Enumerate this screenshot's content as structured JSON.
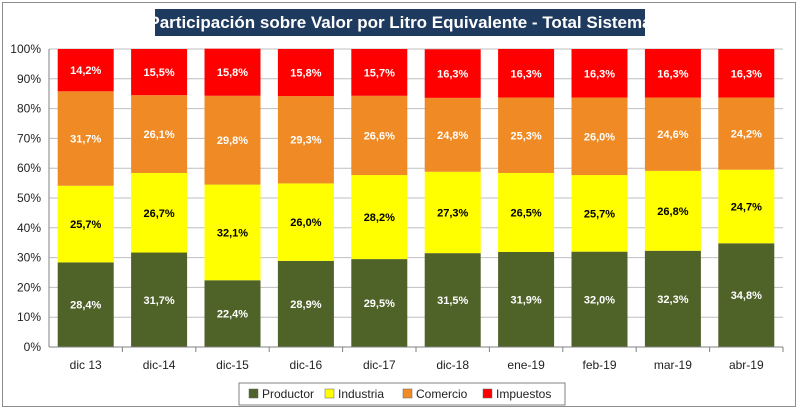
{
  "chart_data": {
    "type": "bar",
    "stacked": true,
    "percent_stacked": true,
    "title": "Participación sobre Valor por Litro Equivalente - Total Sistema",
    "xlabel": "",
    "ylabel": "",
    "ylim": [
      0,
      100
    ],
    "y_ticks": [
      "0%",
      "10%",
      "20%",
      "30%",
      "40%",
      "50%",
      "60%",
      "70%",
      "80%",
      "90%",
      "100%"
    ],
    "grid": true,
    "legend_position": "bottom",
    "categories": [
      "dic 13",
      "dic-14",
      "dic-15",
      "dic-16",
      "dic-17",
      "dic-18",
      "ene-19",
      "feb-19",
      "mar-19",
      "abr-19"
    ],
    "series": [
      {
        "name": "Productor",
        "color": "#4f6228",
        "label_color": "#ffffff",
        "values": [
          28.4,
          31.7,
          22.4,
          28.9,
          29.5,
          31.5,
          31.9,
          32.0,
          32.3,
          34.8
        ],
        "labels": [
          "28,4%",
          "31,7%",
          "22,4%",
          "28,9%",
          "29,5%",
          "31,5%",
          "31,9%",
          "32,0%",
          "32,3%",
          "34,8%"
        ]
      },
      {
        "name": "Industria",
        "color": "#ffff00",
        "label_color": "#000000",
        "values": [
          25.7,
          26.7,
          32.1,
          26.0,
          28.2,
          27.3,
          26.5,
          25.7,
          26.8,
          24.7
        ],
        "labels": [
          "25,7%",
          "26,7%",
          "32,1%",
          "26,0%",
          "28,2%",
          "27,3%",
          "26,5%",
          "25,7%",
          "26,8%",
          "24,7%"
        ]
      },
      {
        "name": "Comercio",
        "color": "#f08a24",
        "label_color": "#ffffff",
        "values": [
          31.7,
          26.1,
          29.8,
          29.3,
          26.6,
          24.8,
          25.3,
          26.0,
          24.6,
          24.2
        ],
        "labels": [
          "31,7%",
          "26,1%",
          "29,8%",
          "29,3%",
          "26,6%",
          "24,8%",
          "25,3%",
          "26,0%",
          "24,6%",
          "24,2%"
        ]
      },
      {
        "name": "Impuestos",
        "color": "#ff0000",
        "label_color": "#ffffff",
        "values": [
          14.2,
          15.5,
          15.8,
          15.8,
          15.7,
          16.3,
          16.3,
          16.3,
          16.3,
          16.3
        ],
        "labels": [
          "14,2%",
          "15,5%",
          "15,8%",
          "15,8%",
          "15,7%",
          "16,3%",
          "16,3%",
          "16,3%",
          "16,3%",
          "16,3%"
        ]
      }
    ]
  }
}
